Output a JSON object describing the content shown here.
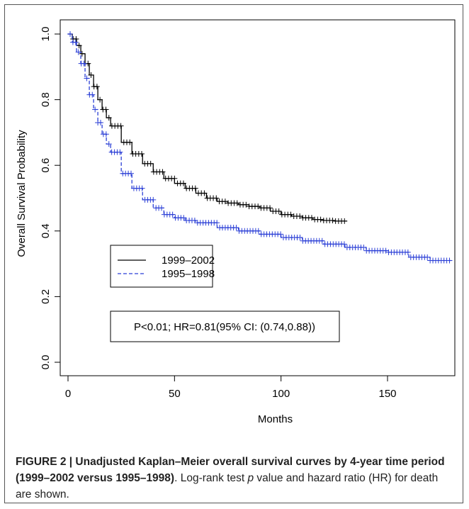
{
  "chart_data": {
    "type": "line",
    "xlabel": "Months",
    "ylabel": "Overall Survival Probability",
    "xlim": [
      0,
      182
    ],
    "ylim": [
      0,
      1.0
    ],
    "x_ticks": [
      0,
      50,
      100,
      150
    ],
    "y_ticks": [
      0.0,
      0.2,
      0.4,
      0.6,
      0.8,
      1.0
    ],
    "x_tick_labels": [
      "0",
      "50",
      "100",
      "150"
    ],
    "y_tick_labels": [
      "0.0",
      "0.2",
      "0.4",
      "0.6",
      "0.8",
      "1.0"
    ],
    "grid": false,
    "legend_position": "middle-left",
    "series": [
      {
        "name": "1999–2002",
        "color": "#000000",
        "line_style": "solid",
        "censor_marks": true,
        "x": [
          0,
          2,
          4,
          6,
          8,
          10,
          12,
          14,
          16,
          18,
          20,
          25,
          30,
          35,
          40,
          45,
          50,
          55,
          60,
          65,
          70,
          75,
          80,
          85,
          90,
          95,
          100,
          105,
          110,
          115,
          120,
          125,
          131
        ],
        "y": [
          1.0,
          0.985,
          0.965,
          0.94,
          0.91,
          0.875,
          0.84,
          0.8,
          0.77,
          0.745,
          0.72,
          0.67,
          0.635,
          0.605,
          0.58,
          0.56,
          0.545,
          0.53,
          0.515,
          0.5,
          0.49,
          0.485,
          0.48,
          0.475,
          0.47,
          0.46,
          0.45,
          0.445,
          0.44,
          0.435,
          0.432,
          0.43,
          0.43
        ]
      },
      {
        "name": "1995–1998",
        "color": "#2b3fd6",
        "line_style": "dashed",
        "censor_marks": true,
        "x": [
          0,
          2,
          4,
          6,
          8,
          10,
          12,
          14,
          16,
          18,
          20,
          25,
          30,
          35,
          40,
          45,
          50,
          55,
          60,
          70,
          80,
          90,
          100,
          110,
          120,
          130,
          140,
          150,
          160,
          170,
          180
        ],
        "y": [
          1.0,
          0.975,
          0.945,
          0.91,
          0.865,
          0.815,
          0.77,
          0.73,
          0.695,
          0.665,
          0.64,
          0.575,
          0.53,
          0.495,
          0.47,
          0.45,
          0.44,
          0.432,
          0.425,
          0.41,
          0.4,
          0.39,
          0.38,
          0.37,
          0.36,
          0.35,
          0.34,
          0.335,
          0.32,
          0.31,
          0.31
        ]
      }
    ],
    "annotation": "P<0.01; HR=0.81(95% CI: (0.74,0.88))"
  },
  "caption": {
    "bold": "FIGURE 2 | Unadjusted Kaplan–Meier overall survival curves by 4-year time period (1999–2002 versus 1995–1998)",
    "after_bold": ". Log-rank test ",
    "italic": "p",
    "after_italic": " value and hazard ratio (HR) for death are shown."
  }
}
